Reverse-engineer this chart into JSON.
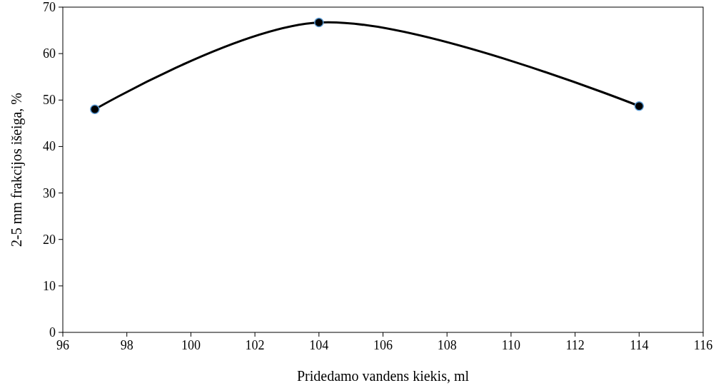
{
  "chart_data": {
    "type": "line",
    "xlabel": "Pridedamo vandens kiekis, ml",
    "ylabel": "2-5 mm frakcijos išeiga, %",
    "x": [
      97,
      104,
      114
    ],
    "series": [
      {
        "color": "#000000",
        "values": [
          48,
          66.7,
          48.7
        ]
      }
    ],
    "marker": "circle",
    "line_style": "solid",
    "xlim": [
      96,
      116
    ],
    "xticks": [
      96,
      98,
      100,
      102,
      104,
      106,
      108,
      110,
      112,
      114,
      116
    ],
    "ylim": [
      0,
      70
    ],
    "yticks": [
      0,
      10,
      20,
      30,
      40,
      50,
      60,
      70
    ],
    "grid": false
  }
}
